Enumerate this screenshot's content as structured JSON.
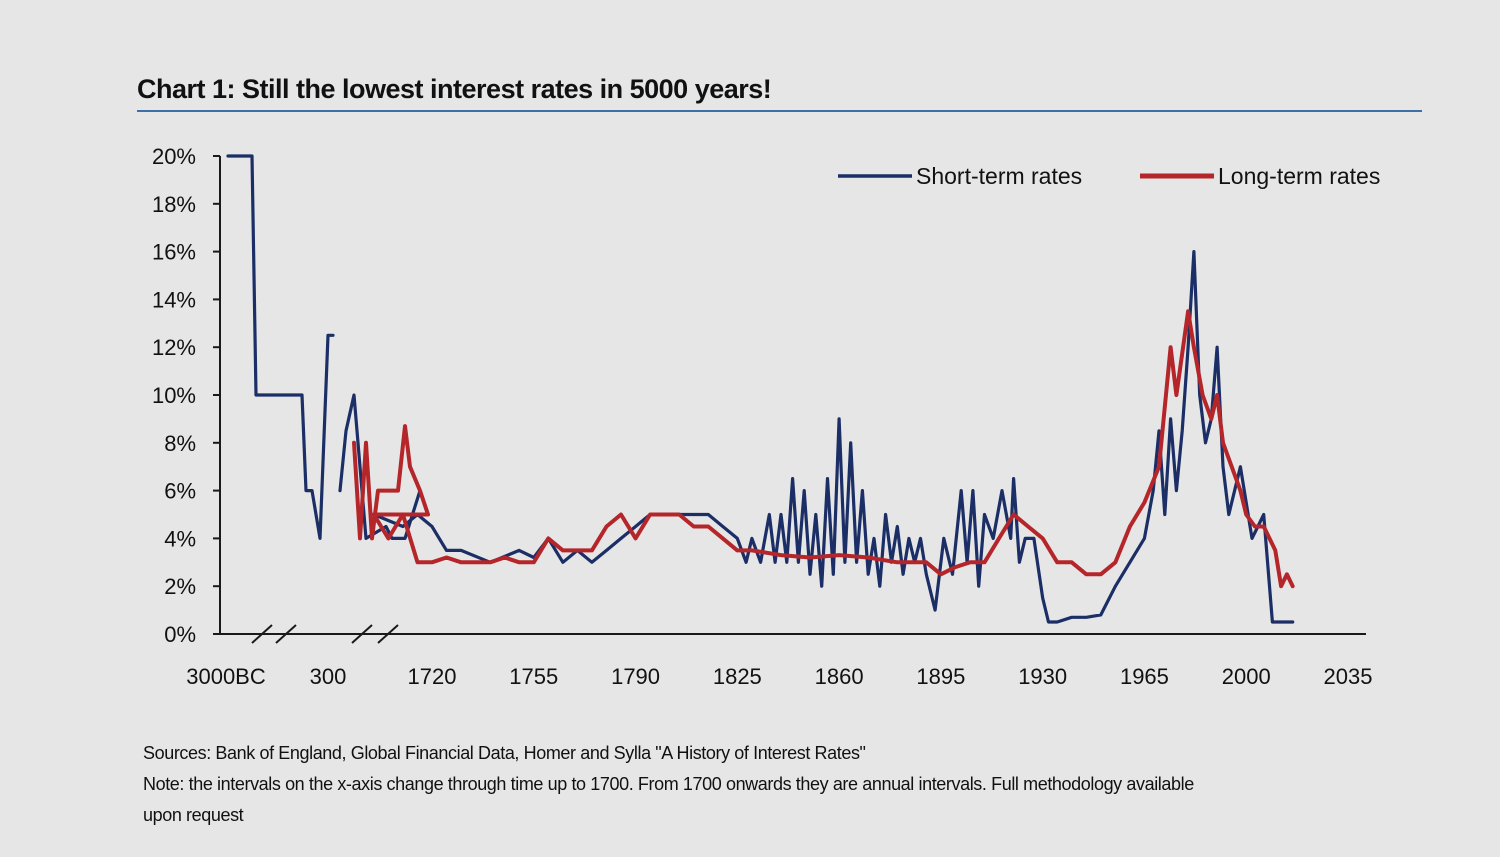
{
  "page": {
    "title": "Chart 1:  Still the lowest interest rates in 5000 years!",
    "sources": "Sources: Bank of England, Global Financial Data, Homer and Sylla \"A History of Interest Rates\"",
    "note_line1": "Note: the intervals on the x-axis change through time up to 1700. From 1700 onwards they are annual intervals. Full methodology available",
    "note_line2": "upon request"
  },
  "colors": {
    "short": "#1b2f66",
    "long": "#b5262a",
    "axis": "#1a1a1a",
    "rule": "#3d6fa8"
  },
  "chart_data": {
    "type": "line",
    "title": "Chart 1:  Still the lowest interest rates in 5000 years!",
    "ylim": [
      0,
      20
    ],
    "y_ticks": [
      "0%",
      "2%",
      "4%",
      "6%",
      "8%",
      "10%",
      "12%",
      "14%",
      "16%",
      "18%",
      "20%"
    ],
    "x_tick_labels": [
      "3000BC",
      "300",
      "1720",
      "1755",
      "1790",
      "1825",
      "1860",
      "1895",
      "1930",
      "1965",
      "2000",
      "2035"
    ],
    "axis_breaks": "two breaks on the x-axis before 1700",
    "grid": false,
    "legend_position": "top-right",
    "series": [
      {
        "name": "Short-term rates",
        "color": "#1b2f66",
        "points": [
          [
            "3000BC",
            20
          ],
          [
            "2500BC",
            20
          ],
          [
            "2000BC",
            10
          ],
          [
            "1500BC",
            10
          ],
          [
            "900BC",
            10
          ],
          [
            "600BC",
            6
          ],
          [
            "400BC",
            6
          ],
          [
            "200BC",
            4
          ],
          [
            "1",
            12.5
          ],
          [
            "100",
            12.5
          ],
          [
            "300",
            6
          ],
          [
            "400",
            8.5
          ],
          [
            "500",
            10
          ],
          [
            "800",
            4
          ],
          [
            "1200",
            4.5
          ],
          [
            "1300",
            4
          ],
          [
            "1500",
            4
          ],
          [
            "1650",
            6
          ],
          [
            "1690",
            5
          ],
          [
            1700,
            5
          ],
          [
            1710,
            4.5
          ],
          [
            1715,
            5
          ],
          [
            1720,
            4.5
          ],
          [
            1725,
            3.5
          ],
          [
            1730,
            3.5
          ],
          [
            1740,
            3
          ],
          [
            1750,
            3.5
          ],
          [
            1755,
            3.2
          ],
          [
            1760,
            4
          ],
          [
            1765,
            3
          ],
          [
            1770,
            3.5
          ],
          [
            1775,
            3
          ],
          [
            1780,
            3.5
          ],
          [
            1785,
            4
          ],
          [
            1790,
            4.5
          ],
          [
            1795,
            5
          ],
          [
            1800,
            5
          ],
          [
            1805,
            5
          ],
          [
            1810,
            5
          ],
          [
            1815,
            5
          ],
          [
            1820,
            4.5
          ],
          [
            1825,
            4
          ],
          [
            1828,
            3
          ],
          [
            1830,
            4
          ],
          [
            1833,
            3
          ],
          [
            1836,
            5
          ],
          [
            1838,
            3
          ],
          [
            1840,
            5
          ],
          [
            1842,
            3
          ],
          [
            1844,
            6.5
          ],
          [
            1846,
            3
          ],
          [
            1848,
            6
          ],
          [
            1850,
            2.5
          ],
          [
            1852,
            5
          ],
          [
            1854,
            2
          ],
          [
            1856,
            6.5
          ],
          [
            1858,
            2.5
          ],
          [
            1860,
            9
          ],
          [
            1862,
            3
          ],
          [
            1864,
            8
          ],
          [
            1866,
            3
          ],
          [
            1868,
            6
          ],
          [
            1870,
            2.5
          ],
          [
            1872,
            4
          ],
          [
            1874,
            2
          ],
          [
            1876,
            5
          ],
          [
            1878,
            3
          ],
          [
            1880,
            4.5
          ],
          [
            1882,
            2.5
          ],
          [
            1884,
            4
          ],
          [
            1886,
            3
          ],
          [
            1888,
            4
          ],
          [
            1890,
            2.5
          ],
          [
            1893,
            1
          ],
          [
            1896,
            4
          ],
          [
            1899,
            2.5
          ],
          [
            1902,
            6
          ],
          [
            1904,
            3
          ],
          [
            1906,
            6
          ],
          [
            1908,
            2
          ],
          [
            1910,
            5
          ],
          [
            1913,
            4
          ],
          [
            1916,
            6
          ],
          [
            1919,
            4
          ],
          [
            1920,
            6.5
          ],
          [
            1922,
            3
          ],
          [
            1924,
            4
          ],
          [
            1927,
            4
          ],
          [
            1930,
            1.5
          ],
          [
            1932,
            0.5
          ],
          [
            1935,
            0.5
          ],
          [
            1940,
            0.7
          ],
          [
            1945,
            0.7
          ],
          [
            1950,
            0.8
          ],
          [
            1955,
            2
          ],
          [
            1960,
            3
          ],
          [
            1965,
            4
          ],
          [
            1968,
            6
          ],
          [
            1970,
            8.5
          ],
          [
            1972,
            5
          ],
          [
            1974,
            9
          ],
          [
            1976,
            6
          ],
          [
            1978,
            8.5
          ],
          [
            1980,
            12
          ],
          [
            1982,
            16
          ],
          [
            1984,
            10
          ],
          [
            1986,
            8
          ],
          [
            1988,
            9
          ],
          [
            1990,
            12
          ],
          [
            1992,
            7
          ],
          [
            1994,
            5
          ],
          [
            1996,
            6
          ],
          [
            1998,
            7
          ],
          [
            2000,
            5.5
          ],
          [
            2002,
            4
          ],
          [
            2004,
            4.5
          ],
          [
            2006,
            5
          ],
          [
            2008,
            2
          ],
          [
            2009,
            0.5
          ],
          [
            2012,
            0.5
          ],
          [
            2015,
            0.5
          ],
          [
            2016,
            0.5
          ]
        ]
      },
      {
        "name": "Long-term rates",
        "color": "#b5262a",
        "points": [
          [
            "500",
            8
          ],
          [
            "650",
            4
          ],
          [
            "800",
            8
          ],
          [
            "900",
            4
          ],
          [
            "1000",
            6
          ],
          [
            "1200",
            6
          ],
          [
            "1400",
            6
          ],
          [
            "1500",
            8.7
          ],
          [
            "1550",
            7
          ],
          [
            "1650",
            6
          ],
          [
            "1690",
            5
          ],
          [
            1700,
            5
          ],
          [
            1705,
            4
          ],
          [
            1710,
            5
          ],
          [
            1715,
            3
          ],
          [
            1720,
            3
          ],
          [
            1725,
            3.2
          ],
          [
            1730,
            3
          ],
          [
            1735,
            3
          ],
          [
            1740,
            3
          ],
          [
            1745,
            3.2
          ],
          [
            1750,
            3
          ],
          [
            1755,
            3
          ],
          [
            1760,
            4
          ],
          [
            1765,
            3.5
          ],
          [
            1770,
            3.5
          ],
          [
            1775,
            3.5
          ],
          [
            1780,
            4.5
          ],
          [
            1785,
            5
          ],
          [
            1790,
            4
          ],
          [
            1795,
            5
          ],
          [
            1800,
            5
          ],
          [
            1805,
            5
          ],
          [
            1810,
            4.5
          ],
          [
            1815,
            4.5
          ],
          [
            1820,
            4
          ],
          [
            1825,
            3.5
          ],
          [
            1830,
            3.5
          ],
          [
            1840,
            3.3
          ],
          [
            1850,
            3.2
          ],
          [
            1860,
            3.3
          ],
          [
            1870,
            3.2
          ],
          [
            1880,
            3
          ],
          [
            1890,
            3
          ],
          [
            1895,
            2.5
          ],
          [
            1900,
            2.8
          ],
          [
            1905,
            3
          ],
          [
            1910,
            3
          ],
          [
            1915,
            4
          ],
          [
            1920,
            5
          ],
          [
            1925,
            4.5
          ],
          [
            1930,
            4
          ],
          [
            1935,
            3
          ],
          [
            1940,
            3
          ],
          [
            1945,
            2.5
          ],
          [
            1950,
            2.5
          ],
          [
            1955,
            3
          ],
          [
            1960,
            4.5
          ],
          [
            1965,
            5.5
          ],
          [
            1970,
            7
          ],
          [
            1974,
            12
          ],
          [
            1976,
            10
          ],
          [
            1980,
            13.5
          ],
          [
            1982,
            12
          ],
          [
            1985,
            10
          ],
          [
            1988,
            9
          ],
          [
            1990,
            10
          ],
          [
            1992,
            8
          ],
          [
            1995,
            7
          ],
          [
            1998,
            6
          ],
          [
            2000,
            5
          ],
          [
            2003,
            4.5
          ],
          [
            2006,
            4.5
          ],
          [
            2008,
            4
          ],
          [
            2010,
            3.5
          ],
          [
            2012,
            2
          ],
          [
            2014,
            2.5
          ],
          [
            2016,
            2
          ]
        ]
      }
    ]
  }
}
